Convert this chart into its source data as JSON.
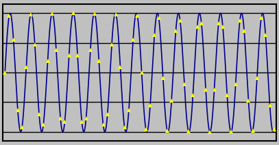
{
  "NWINDOW": 13,
  "NRECORD": 64,
  "background_color": "#c0c0c0",
  "line_color": "#00008b",
  "marker_color": "#ffff00",
  "marker_style": "^",
  "marker_size": 4,
  "line_width": 1.2,
  "grid_color": "#000000",
  "grid_linewidth": 1.0,
  "ylim": [
    -1.15,
    1.15
  ],
  "xlim": [
    -0.5,
    63.5
  ],
  "grid_y_positions": [
    -1.0,
    -0.5,
    0.0,
    0.5,
    1.0
  ],
  "figsize": [
    4.07,
    2.12
  ],
  "dpi": 100,
  "border_color": "#000000",
  "border_linewidth": 1.5,
  "n_smooth": 1000
}
